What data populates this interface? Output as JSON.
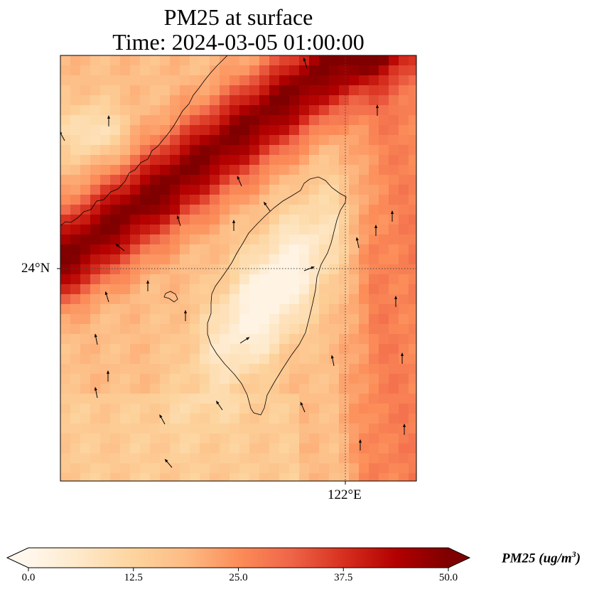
{
  "title": {
    "line1": "PM25 at surface",
    "line2": "Time: 2024-03-05 01:00:00"
  },
  "map": {
    "projection": "lat-lon",
    "gridlines": [
      {
        "axis": "lat",
        "label": "24°N"
      },
      {
        "axis": "lon",
        "label": "122°E"
      }
    ],
    "layers": [
      "PM25 shaded field",
      "coastlines",
      "wind vectors"
    ],
    "coastline_color": "#000000",
    "gridline_style": "dotted"
  },
  "colorbar": {
    "label_main": "PM25 (ug/m",
    "label_sup": "3",
    "label_close": ")",
    "min": 0.0,
    "max": 50.0,
    "extend": "both",
    "colormap": "OrRd",
    "ticks": [
      "0.0",
      "12.5",
      "25.0",
      "37.5",
      "50.0"
    ],
    "colors": [
      "#fff7ec",
      "#fee8c8",
      "#fdd49e",
      "#fdbb84",
      "#fc8d59",
      "#ef6548",
      "#d7301f",
      "#b30000",
      "#7f0000"
    ]
  }
}
